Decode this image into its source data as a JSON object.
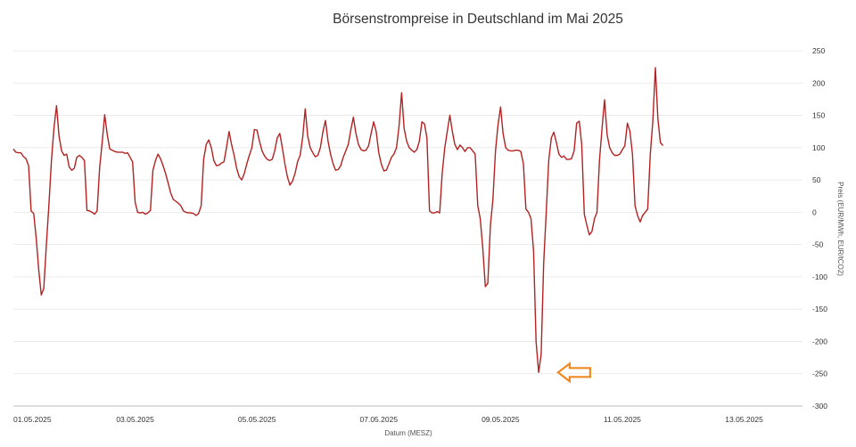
{
  "chart_data": {
    "type": "line",
    "title": "Börsenstrompreise in Deutschland im Mai 2025",
    "xlabel": "Datum (MESZ)",
    "ylabel": "Preis (EUR/MWh, EUR/tCO2)",
    "y_axis_position": "right",
    "ylim": [
      -300,
      250
    ],
    "yticks": [
      250,
      200,
      150,
      100,
      50,
      0,
      -50,
      -100,
      -150,
      -200,
      -250,
      -300
    ],
    "xlim": [
      0,
      311
    ],
    "xticks": [
      {
        "x": 0,
        "label": "01.05.2025"
      },
      {
        "x": 48,
        "label": "03.05.2025"
      },
      {
        "x": 96,
        "label": "05.05.2025"
      },
      {
        "x": 144,
        "label": "07.05.2025"
      },
      {
        "x": 192,
        "label": "09.05.2025"
      },
      {
        "x": 240,
        "label": "11.05.2025"
      },
      {
        "x": 288,
        "label": "13.05.2025"
      }
    ],
    "grid": true,
    "series": [
      {
        "color": "#b22222",
        "values": [
          [
            0,
            98
          ],
          [
            1,
            93
          ],
          [
            2,
            92
          ],
          [
            3,
            92
          ],
          [
            4,
            86
          ],
          [
            5,
            83
          ],
          [
            6,
            72
          ],
          [
            7,
            2
          ],
          [
            8,
            -2
          ],
          [
            9,
            -40
          ],
          [
            10,
            -90
          ],
          [
            11,
            -128
          ],
          [
            12,
            -118
          ],
          [
            13,
            -50
          ],
          [
            14,
            10
          ],
          [
            15,
            80
          ],
          [
            16,
            130
          ],
          [
            17,
            165
          ],
          [
            18,
            118
          ],
          [
            19,
            95
          ],
          [
            20,
            88
          ],
          [
            21,
            90
          ],
          [
            22,
            70
          ],
          [
            23,
            65
          ],
          [
            24,
            68
          ],
          [
            25,
            85
          ],
          [
            26,
            88
          ],
          [
            27,
            85
          ],
          [
            28,
            80
          ],
          [
            29,
            3
          ],
          [
            30,
            2
          ],
          [
            31,
            0
          ],
          [
            32,
            -3
          ],
          [
            33,
            2
          ],
          [
            34,
            70
          ],
          [
            35,
            108
          ],
          [
            36,
            151
          ],
          [
            37,
            120
          ],
          [
            38,
            98
          ],
          [
            39,
            96
          ],
          [
            40,
            94
          ],
          [
            41,
            93
          ],
          [
            42,
            93
          ],
          [
            43,
            93
          ],
          [
            44,
            91
          ],
          [
            45,
            92
          ],
          [
            46,
            85
          ],
          [
            47,
            78
          ],
          [
            48,
            15
          ],
          [
            49,
            0
          ],
          [
            50,
            -1
          ],
          [
            51,
            0
          ],
          [
            52,
            -3
          ],
          [
            53,
            -1
          ],
          [
            54,
            3
          ],
          [
            55,
            65
          ],
          [
            56,
            80
          ],
          [
            57,
            90
          ],
          [
            58,
            83
          ],
          [
            59,
            72
          ],
          [
            60,
            60
          ],
          [
            61,
            45
          ],
          [
            62,
            30
          ],
          [
            63,
            20
          ],
          [
            64,
            17
          ],
          [
            65,
            14
          ],
          [
            66,
            10
          ],
          [
            67,
            2
          ],
          [
            68,
            0
          ],
          [
            69,
            -1
          ],
          [
            70,
            -1
          ],
          [
            71,
            -2
          ],
          [
            72,
            -5
          ],
          [
            73,
            -2
          ],
          [
            74,
            10
          ],
          [
            75,
            82
          ],
          [
            76,
            105
          ],
          [
            77,
            112
          ],
          [
            78,
            100
          ],
          [
            79,
            80
          ],
          [
            80,
            72
          ],
          [
            81,
            73
          ],
          [
            82,
            76
          ],
          [
            83,
            78
          ],
          [
            84,
            100
          ],
          [
            85,
            125
          ],
          [
            86,
            105
          ],
          [
            87,
            88
          ],
          [
            88,
            68
          ],
          [
            89,
            55
          ],
          [
            90,
            50
          ],
          [
            91,
            60
          ],
          [
            92,
            75
          ],
          [
            93,
            88
          ],
          [
            94,
            100
          ],
          [
            95,
            128
          ],
          [
            96,
            127
          ],
          [
            97,
            110
          ],
          [
            98,
            95
          ],
          [
            99,
            87
          ],
          [
            100,
            82
          ],
          [
            101,
            80
          ],
          [
            102,
            82
          ],
          [
            103,
            95
          ],
          [
            104,
            115
          ],
          [
            105,
            122
          ],
          [
            106,
            100
          ],
          [
            107,
            75
          ],
          [
            108,
            55
          ],
          [
            109,
            42
          ],
          [
            110,
            48
          ],
          [
            111,
            60
          ],
          [
            112,
            78
          ],
          [
            113,
            88
          ],
          [
            114,
            115
          ],
          [
            115,
            160
          ],
          [
            116,
            118
          ],
          [
            117,
            100
          ],
          [
            118,
            92
          ],
          [
            119,
            86
          ],
          [
            120,
            88
          ],
          [
            121,
            100
          ],
          [
            122,
            125
          ],
          [
            123,
            142
          ],
          [
            124,
            110
          ],
          [
            125,
            90
          ],
          [
            126,
            75
          ],
          [
            127,
            65
          ],
          [
            128,
            66
          ],
          [
            129,
            72
          ],
          [
            130,
            85
          ],
          [
            131,
            95
          ],
          [
            132,
            105
          ],
          [
            133,
            128
          ],
          [
            134,
            147
          ],
          [
            135,
            122
          ],
          [
            136,
            105
          ],
          [
            137,
            97
          ],
          [
            138,
            95
          ],
          [
            139,
            96
          ],
          [
            140,
            103
          ],
          [
            141,
            122
          ],
          [
            142,
            140
          ],
          [
            143,
            125
          ],
          [
            144,
            92
          ],
          [
            145,
            75
          ],
          [
            146,
            64
          ],
          [
            147,
            65
          ],
          [
            148,
            75
          ],
          [
            149,
            85
          ],
          [
            150,
            90
          ],
          [
            151,
            100
          ],
          [
            152,
            133
          ],
          [
            153,
            185
          ],
          [
            154,
            130
          ],
          [
            155,
            110
          ],
          [
            156,
            100
          ],
          [
            157,
            96
          ],
          [
            158,
            93
          ],
          [
            159,
            97
          ],
          [
            160,
            110
          ],
          [
            161,
            140
          ],
          [
            162,
            137
          ],
          [
            163,
            115
          ],
          [
            164,
            2
          ],
          [
            165,
            -1
          ],
          [
            166,
            -1
          ],
          [
            167,
            1
          ],
          [
            168,
            -1
          ],
          [
            169,
            60
          ],
          [
            170,
            100
          ],
          [
            171,
            125
          ],
          [
            172,
            150
          ],
          [
            173,
            125
          ],
          [
            174,
            105
          ],
          [
            175,
            97
          ],
          [
            176,
            104
          ],
          [
            177,
            100
          ],
          [
            178,
            94
          ],
          [
            179,
            100
          ],
          [
            180,
            100
          ],
          [
            181,
            95
          ],
          [
            182,
            90
          ],
          [
            183,
            10
          ],
          [
            184,
            -10
          ],
          [
            185,
            -55
          ],
          [
            186,
            -115
          ],
          [
            187,
            -110
          ],
          [
            188,
            -20
          ],
          [
            189,
            20
          ],
          [
            190,
            95
          ],
          [
            191,
            135
          ],
          [
            192,
            163
          ],
          [
            193,
            122
          ],
          [
            194,
            100
          ],
          [
            195,
            96
          ],
          [
            196,
            95
          ],
          [
            197,
            95
          ],
          [
            198,
            96
          ],
          [
            199,
            96
          ],
          [
            200,
            94
          ],
          [
            201,
            75
          ],
          [
            202,
            5
          ],
          [
            203,
            0
          ],
          [
            204,
            -10
          ],
          [
            205,
            -60
          ],
          [
            206,
            -200
          ],
          [
            207,
            -248
          ],
          [
            208,
            -220
          ],
          [
            209,
            -80
          ],
          [
            210,
            0
          ],
          [
            211,
            80
          ],
          [
            212,
            115
          ],
          [
            213,
            124
          ],
          [
            214,
            108
          ],
          [
            215,
            90
          ],
          [
            216,
            85
          ],
          [
            217,
            87
          ],
          [
            218,
            82
          ],
          [
            219,
            82
          ],
          [
            220,
            83
          ],
          [
            221,
            95
          ],
          [
            222,
            138
          ],
          [
            223,
            141
          ],
          [
            224,
            105
          ],
          [
            225,
            -3
          ],
          [
            226,
            -20
          ],
          [
            227,
            -35
          ],
          [
            228,
            -30
          ],
          [
            229,
            -10
          ],
          [
            230,
            0
          ],
          [
            231,
            80
          ],
          [
            232,
            130
          ],
          [
            233,
            174
          ],
          [
            234,
            120
          ],
          [
            235,
            100
          ],
          [
            236,
            92
          ],
          [
            237,
            88
          ],
          [
            238,
            88
          ],
          [
            239,
            90
          ],
          [
            240,
            97
          ],
          [
            241,
            103
          ],
          [
            242,
            138
          ],
          [
            243,
            125
          ],
          [
            244,
            90
          ],
          [
            245,
            10
          ],
          [
            246,
            -5
          ],
          [
            247,
            -15
          ],
          [
            248,
            -5
          ],
          [
            249,
            0
          ],
          [
            250,
            5
          ],
          [
            251,
            90
          ],
          [
            252,
            140
          ],
          [
            253,
            224
          ],
          [
            254,
            145
          ],
          [
            255,
            108
          ],
          [
            256,
            103
          ]
        ]
      }
    ]
  },
  "annotation": {
    "type": "left-arrow",
    "stroke_color": "#f08a24",
    "at_x": 208,
    "at_y": -248
  }
}
